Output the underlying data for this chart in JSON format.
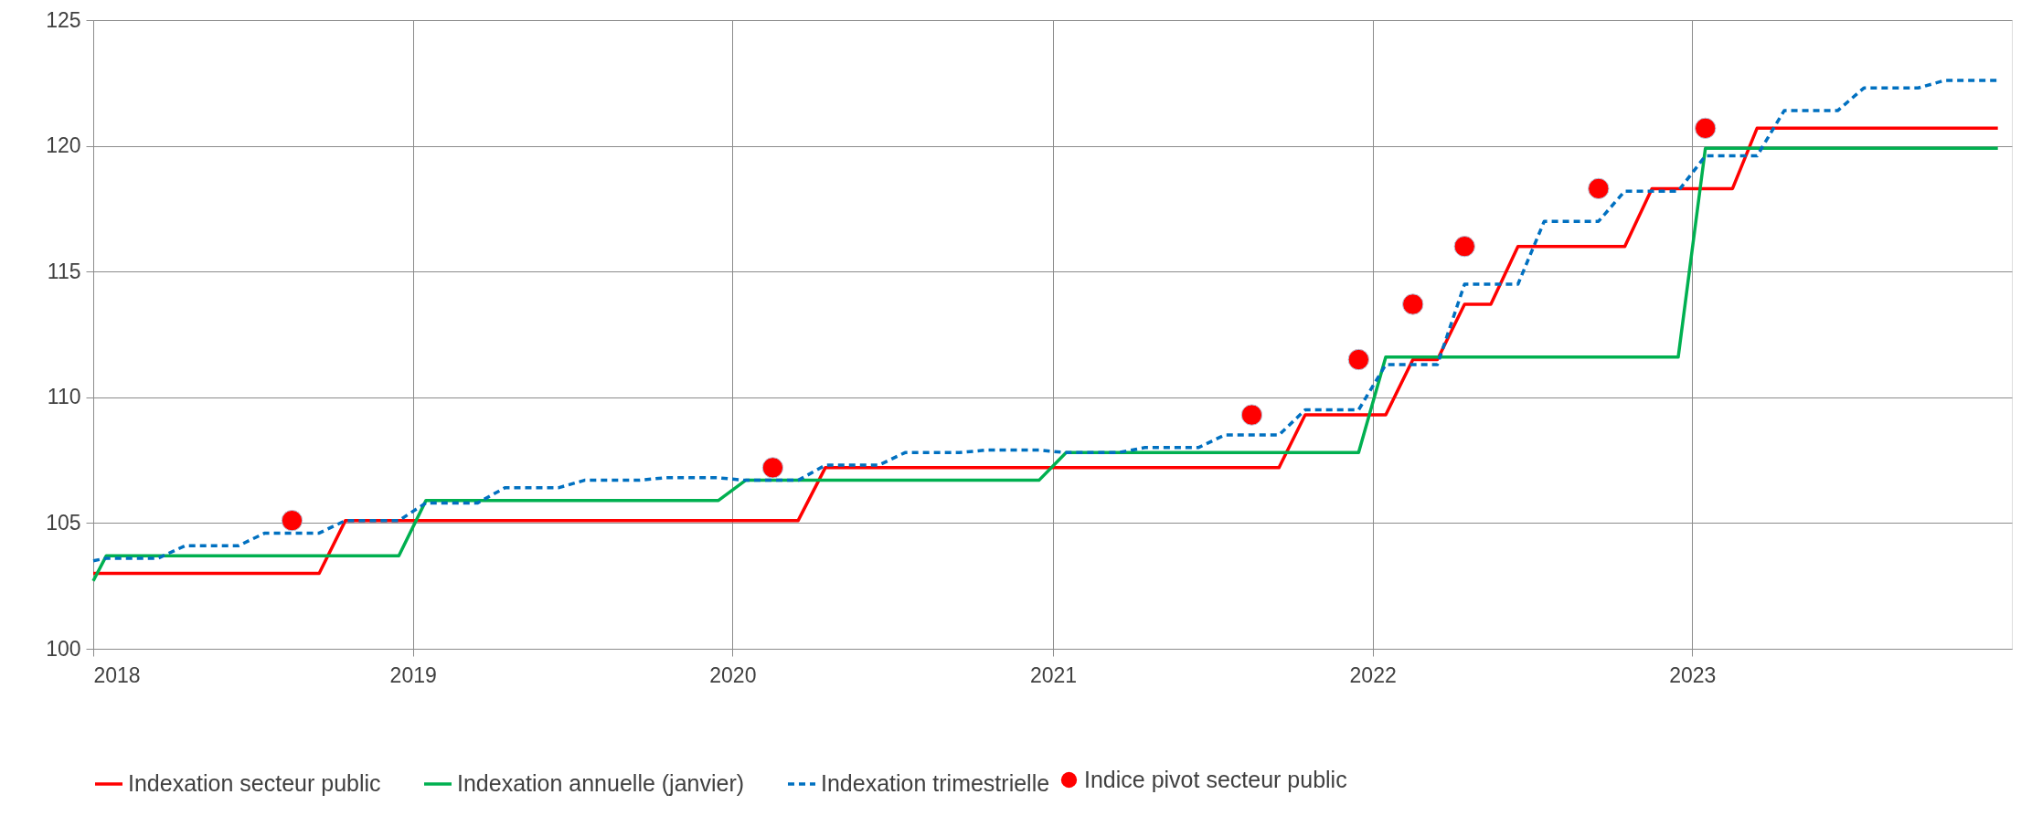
{
  "chart_data": {
    "type": "line",
    "xlim": [
      "2018-01-01",
      "2024-01-01"
    ],
    "xticks": [
      "2018",
      "2019",
      "2020",
      "2021",
      "2022",
      "2023"
    ],
    "ylim": [
      100,
      125
    ],
    "yticks": [
      100,
      105,
      110,
      115,
      120,
      125
    ],
    "grid": true,
    "legend": "bottom",
    "series": [
      {
        "name": "Indexation secteur public",
        "type": "line",
        "color": "#ff0000",
        "line_style": "solid",
        "x": [
          "2018-01-01",
          "2018-09-16",
          "2018-10-16",
          "2020-03-16",
          "2020-04-16",
          "2021-09-16",
          "2021-10-16",
          "2022-01-16",
          "2022-02-16",
          "2022-03-16",
          "2022-04-16",
          "2022-05-16",
          "2022-06-16",
          "2022-10-16",
          "2022-11-16",
          "2023-02-16",
          "2023-03-16",
          "2023-12-16"
        ],
        "values": [
          103.0,
          103.0,
          105.1,
          105.1,
          107.2,
          107.2,
          109.3,
          109.3,
          111.5,
          111.5,
          113.7,
          113.7,
          116.0,
          116.0,
          118.3,
          118.3,
          120.7,
          120.7
        ]
      },
      {
        "name": "Indexation annuelle (janvier)",
        "type": "line",
        "color": "#00b050",
        "line_style": "solid",
        "x": [
          "2018-01-01",
          "2018-01-16",
          "2018-12-16",
          "2019-01-16",
          "2019-12-16",
          "2020-01-16",
          "2020-12-16",
          "2021-01-16",
          "2021-12-16",
          "2022-01-16",
          "2022-12-16",
          "2023-01-16",
          "2023-12-16"
        ],
        "values": [
          102.7,
          103.7,
          103.7,
          105.9,
          105.9,
          106.7,
          106.7,
          107.8,
          107.8,
          111.6,
          111.6,
          119.9,
          119.9
        ]
      },
      {
        "name": "Indexation trimestrielle",
        "type": "line",
        "color": "#0070c0",
        "line_style": "dashed",
        "x": [
          "2018-01-01",
          "2018-01-16",
          "2018-03-16",
          "2018-04-16",
          "2018-06-16",
          "2018-07-16",
          "2018-09-16",
          "2018-10-16",
          "2018-12-16",
          "2019-01-16",
          "2019-03-16",
          "2019-04-16",
          "2019-06-16",
          "2019-07-16",
          "2019-09-16",
          "2019-10-16",
          "2019-12-16",
          "2020-01-16",
          "2020-03-16",
          "2020-04-16",
          "2020-06-16",
          "2020-07-16",
          "2020-09-16",
          "2020-10-16",
          "2020-12-16",
          "2021-01-16",
          "2021-03-16",
          "2021-04-16",
          "2021-06-16",
          "2021-07-16",
          "2021-09-16",
          "2021-10-16",
          "2021-12-16",
          "2022-01-16",
          "2022-03-16",
          "2022-04-16",
          "2022-06-16",
          "2022-07-16",
          "2022-09-16",
          "2022-10-16",
          "2022-12-16",
          "2023-01-16",
          "2023-03-16",
          "2023-04-16",
          "2023-06-16",
          "2023-07-16",
          "2023-09-16",
          "2023-10-16",
          "2023-12-16"
        ],
        "values": [
          103.5,
          103.6,
          103.6,
          104.1,
          104.1,
          104.6,
          104.6,
          105.1,
          105.1,
          105.8,
          105.8,
          106.4,
          106.4,
          106.7,
          106.7,
          106.8,
          106.8,
          106.7,
          106.7,
          107.3,
          107.3,
          107.8,
          107.8,
          107.9,
          107.9,
          107.8,
          107.8,
          108.0,
          108.0,
          108.5,
          108.5,
          109.5,
          109.5,
          111.3,
          111.3,
          114.5,
          114.5,
          117.0,
          117.0,
          118.2,
          118.2,
          119.6,
          119.6,
          121.4,
          121.4,
          122.3,
          122.3,
          122.6,
          122.6
        ]
      },
      {
        "name": "Indice pivot secteur public",
        "type": "scatter",
        "color": "#ff0000",
        "marker": "circle",
        "x": [
          "2018-08-16",
          "2020-02-16",
          "2021-08-16",
          "2021-12-16",
          "2022-02-16",
          "2022-04-16",
          "2022-09-16",
          "2023-01-16"
        ],
        "values": [
          105.1,
          107.2,
          109.3,
          111.5,
          113.7,
          116.0,
          118.3,
          120.7
        ]
      }
    ]
  }
}
